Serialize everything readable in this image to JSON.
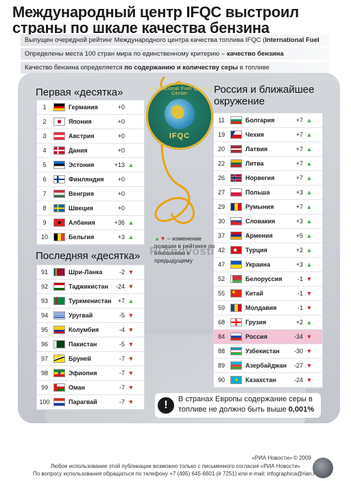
{
  "title": "Международный центр IFQC выстроил страны по шкале качества бензина",
  "info": [
    {
      "pre": "Выпущен очередной рейтинг Международного центра качества топлива IFQC (",
      "bold": "International Fuel Quality Center",
      "post": ")"
    },
    {
      "pre": "Определены места 100 стран мира по единственному критерию – ",
      "bold": "качество бензина",
      "post": ""
    },
    {
      "pre": "Качество бензина определяется ",
      "bold": "по содержанию и количеству серы",
      "post": " в топливе"
    }
  ],
  "first_ten": {
    "title": "Первая «десятка»",
    "rows": [
      {
        "rank": "1",
        "name": "Германия",
        "delta": "+0",
        "arrow": "",
        "flag": "de"
      },
      {
        "rank": "2",
        "name": "Япония",
        "delta": "+0",
        "arrow": "",
        "flag": "jp"
      },
      {
        "rank": "3",
        "name": "Австрия",
        "delta": "+0",
        "arrow": "",
        "flag": "at"
      },
      {
        "rank": "4",
        "name": "Дания",
        "delta": "+0",
        "arrow": "",
        "flag": "dk"
      },
      {
        "rank": "5",
        "name": "Эстония",
        "delta": "+13",
        "arrow": "up",
        "flag": "ee"
      },
      {
        "rank": "6",
        "name": "Финляндия",
        "delta": "+0",
        "arrow": "",
        "flag": "fi"
      },
      {
        "rank": "7",
        "name": "Венгрия",
        "delta": "+0",
        "arrow": "",
        "flag": "hu"
      },
      {
        "rank": "8",
        "name": "Швеция",
        "delta": "+0",
        "arrow": "",
        "flag": "se"
      },
      {
        "rank": "9",
        "name": "Албания",
        "delta": "+36",
        "arrow": "up",
        "flag": "al"
      },
      {
        "rank": "10",
        "name": "Бельгия",
        "delta": "+3",
        "arrow": "up",
        "flag": "be"
      }
    ]
  },
  "last_ten": {
    "title": "Последняя «десятка»",
    "rows": [
      {
        "rank": "91",
        "name": "Шри-Ланка",
        "delta": "-2",
        "arrow": "down",
        "flag": "lk"
      },
      {
        "rank": "92",
        "name": "Таджикистан",
        "delta": "-24",
        "arrow": "down",
        "flag": "tj"
      },
      {
        "rank": "93",
        "name": "Туркменистан",
        "delta": "+7",
        "arrow": "up",
        "flag": "tm"
      },
      {
        "rank": "94",
        "name": "Уругвай",
        "delta": "-5",
        "arrow": "down",
        "flag": "uy"
      },
      {
        "rank": "95",
        "name": "Колумбия",
        "delta": "-4",
        "arrow": "down",
        "flag": "co"
      },
      {
        "rank": "96",
        "name": "Пакистан",
        "delta": "-5",
        "arrow": "down",
        "flag": "pk"
      },
      {
        "rank": "97",
        "name": "Бруней",
        "delta": "-7",
        "arrow": "down",
        "flag": "bn"
      },
      {
        "rank": "98",
        "name": "Эфиопия",
        "delta": "-7",
        "arrow": "down",
        "flag": "et"
      },
      {
        "rank": "99",
        "name": "Оман",
        "delta": "-7",
        "arrow": "down",
        "flag": "om"
      },
      {
        "rank": "100",
        "name": "Парагвай",
        "delta": "-7",
        "arrow": "down",
        "flag": "py"
      }
    ]
  },
  "russia": {
    "title": "Россия и ближайшее окружение",
    "rows": [
      {
        "rank": "11",
        "name": "Болгария",
        "delta": "+7",
        "arrow": "up",
        "flag": "bg"
      },
      {
        "rank": "19",
        "name": "Чехия",
        "delta": "+7",
        "arrow": "up",
        "flag": "cz"
      },
      {
        "rank": "20",
        "name": "Латвия",
        "delta": "+7",
        "arrow": "up",
        "flag": "lv"
      },
      {
        "rank": "22",
        "name": "Литва",
        "delta": "+7",
        "arrow": "up",
        "flag": "lt"
      },
      {
        "rank": "26",
        "name": "Норвегия",
        "delta": "+7",
        "arrow": "up",
        "flag": "no"
      },
      {
        "rank": "27",
        "name": "Польша",
        "delta": "+3",
        "arrow": "up",
        "flag": "pl"
      },
      {
        "rank": "29",
        "name": "Румыния",
        "delta": "+7",
        "arrow": "up",
        "flag": "ro"
      },
      {
        "rank": "30",
        "name": "Словакия",
        "delta": "+3",
        "arrow": "up",
        "flag": "sk"
      },
      {
        "rank": "37",
        "name": "Армения",
        "delta": "+5",
        "arrow": "up",
        "flag": "am"
      },
      {
        "rank": "42",
        "name": "Турция",
        "delta": "+2",
        "arrow": "up",
        "flag": "tr"
      },
      {
        "rank": "47",
        "name": "Украина",
        "delta": "+3",
        "arrow": "up",
        "flag": "ua"
      },
      {
        "rank": "52",
        "name": "Белоруссия",
        "delta": "-1",
        "arrow": "down",
        "flag": "by"
      },
      {
        "rank": "55",
        "name": "Китай",
        "delta": "-1",
        "arrow": "down",
        "flag": "cn"
      },
      {
        "rank": "59",
        "name": "Молдавия",
        "delta": "-1",
        "arrow": "down",
        "flag": "md"
      },
      {
        "rank": "68",
        "name": "Грузия",
        "delta": "+2",
        "arrow": "up",
        "flag": "ge"
      },
      {
        "rank": "84",
        "name": "Россия",
        "delta": "-34",
        "arrow": "down",
        "flag": "ru",
        "highlight": true
      },
      {
        "rank": "88",
        "name": "Узбекистан",
        "delta": "-30",
        "arrow": "down",
        "flag": "uz"
      },
      {
        "rank": "89",
        "name": "Азербайджан",
        "delta": "-27",
        "arrow": "down",
        "flag": "az"
      },
      {
        "rank": "90",
        "name": "Казахстан",
        "delta": "-24",
        "arrow": "down",
        "flag": "kz"
      }
    ]
  },
  "logo": {
    "ring_text": "International Fuel Quality Center",
    "abbr": "IFQC"
  },
  "legend": {
    "symbols_up": "▲",
    "symbols_down": "▼",
    "text": "– изменение позиции в рейтинге по отношению к предыдущему"
  },
  "watermark": "RIAnovosti",
  "note": {
    "icon": "!",
    "pre": "В странах Европы содержание серы в топливе не должно быть выше ",
    "bold": "0,001%"
  },
  "footer": {
    "copyright": "«РИА Новости» © 2009",
    "line1": "Любое использование этой публикации возможно только с письменного согласия «РИА Новости»",
    "line2": "По вопросу использования обращаться по телефону +7 (495) 645-6601 (# 7251) или e-mail: infographica@rian.ru"
  },
  "colors": {
    "up": "#4caf50",
    "down": "#d32f2f",
    "highlight": "#f3c4d6",
    "panel": "#cbced3"
  }
}
